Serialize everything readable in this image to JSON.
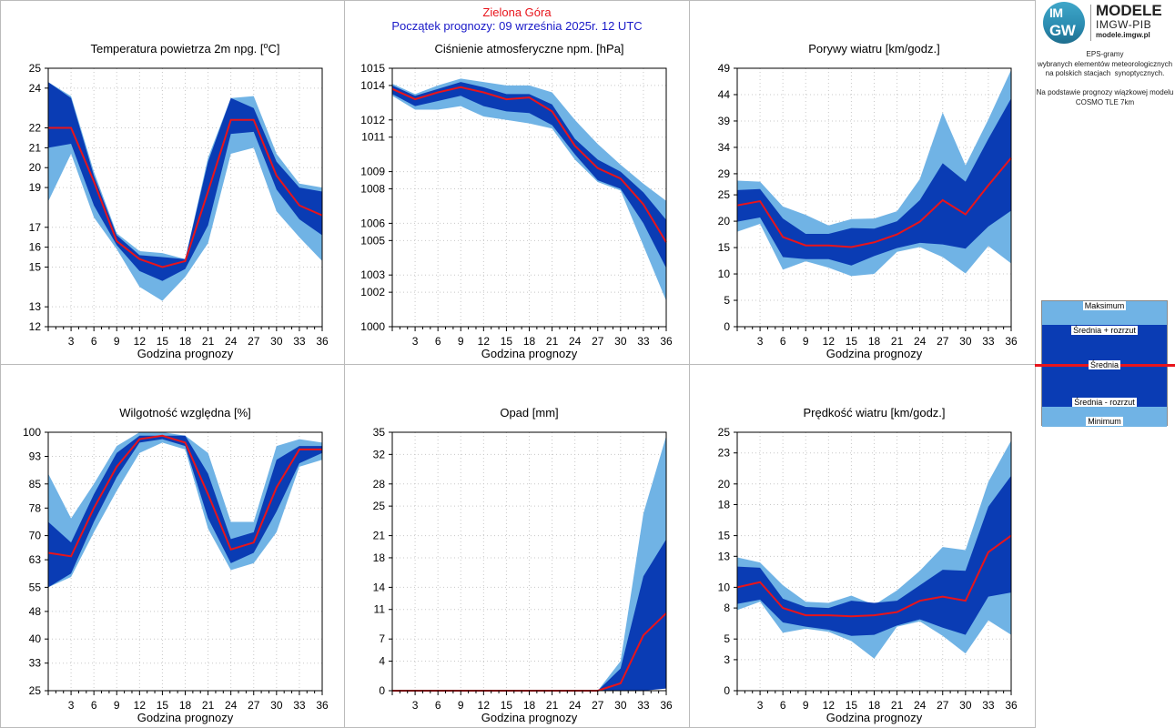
{
  "header": {
    "station": "Zielona Góra",
    "forecast_start": "Początek prognozy: 09 września 2025r. 12 UTC"
  },
  "logo": {
    "mark_top": "IM",
    "mark_bottom": "GW",
    "title": "MODELE",
    "subtitle": "IMGW-PIB",
    "url": "modele.imgw.pl"
  },
  "info": {
    "lines": [
      "EPS-gramy",
      "wybranych elementów meteorologicznych",
      "na polskich stacjach  synoptycznych.",
      "",
      "Na podstawie prognozy wiązkowej modelu",
      "COSMO TLE 7km"
    ]
  },
  "legend": {
    "max": "Maksimum",
    "upper": "Średnia + rozrzut",
    "mean": "Średnia",
    "lower": "Średnia - rozrzut",
    "min": "Minimum"
  },
  "colors": {
    "minmax_band": "#70b3e5",
    "spread_band": "#0a3cb4",
    "mean_line": "#e8141b",
    "station": "#e8141b",
    "forecast_date": "#1a1ac8"
  },
  "chart_data": [
    {
      "id": "temperature",
      "type": "area",
      "title": "Temperatura powietrza 2m npg. [",
      "title_sup": "o",
      "title_end": "C]",
      "xlabel": "Godzina prognozy",
      "x": [
        0,
        3,
        6,
        9,
        12,
        15,
        18,
        21,
        24,
        27,
        30,
        33,
        36
      ],
      "xticks": [
        3,
        6,
        9,
        12,
        15,
        18,
        21,
        24,
        27,
        30,
        33,
        36
      ],
      "xlim": [
        0,
        36
      ],
      "ylim": [
        12,
        25
      ],
      "yticks": [
        12,
        13,
        15,
        16,
        17,
        19,
        20,
        21,
        22,
        24,
        25
      ],
      "max": [
        24.3,
        23.6,
        19.8,
        16.7,
        15.8,
        15.7,
        15.4,
        20.5,
        23.5,
        23.6,
        20.7,
        19.2,
        19.0
      ],
      "upper": [
        24.3,
        23.5,
        19.6,
        16.6,
        15.6,
        15.5,
        15.4,
        20.3,
        23.5,
        23.0,
        20.3,
        19.0,
        18.8
      ],
      "mean": [
        22.0,
        22.0,
        19.3,
        16.3,
        15.4,
        15.0,
        15.3,
        18.8,
        22.4,
        22.4,
        19.6,
        18.1,
        17.6
      ],
      "lower": [
        21.0,
        21.2,
        18.1,
        16.1,
        14.8,
        14.3,
        14.9,
        17.1,
        21.7,
        21.8,
        18.9,
        17.4,
        16.6
      ],
      "min": [
        18.3,
        20.7,
        17.5,
        15.9,
        14.0,
        13.3,
        14.5,
        16.2,
        20.7,
        21.0,
        17.8,
        16.5,
        15.3
      ]
    },
    {
      "id": "pressure",
      "type": "area",
      "title": "Ciśnienie atmosferyczne npm. [hPa]",
      "xlabel": "Godzina prognozy",
      "x": [
        0,
        3,
        6,
        9,
        12,
        15,
        18,
        21,
        24,
        27,
        30,
        33,
        36
      ],
      "xticks": [
        3,
        6,
        9,
        12,
        15,
        18,
        21,
        24,
        27,
        30,
        33,
        36
      ],
      "xlim": [
        0,
        36
      ],
      "ylim": [
        1000,
        1015
      ],
      "yticks": [
        1000,
        1002,
        1003,
        1005,
        1006,
        1008,
        1009,
        1011,
        1012,
        1014,
        1015
      ],
      "max": [
        1014.1,
        1013.5,
        1014.0,
        1014.4,
        1014.2,
        1014.0,
        1014.0,
        1013.6,
        1012.0,
        1010.6,
        1009.4,
        1008.3,
        1007.3
      ],
      "upper": [
        1014.0,
        1013.4,
        1013.8,
        1014.2,
        1013.9,
        1013.5,
        1013.5,
        1012.9,
        1010.9,
        1009.7,
        1009.0,
        1007.8,
        1006.2
      ],
      "mean": [
        1013.8,
        1013.2,
        1013.6,
        1013.9,
        1013.6,
        1013.2,
        1013.3,
        1012.5,
        1010.5,
        1009.2,
        1008.6,
        1007.1,
        1004.9
      ],
      "lower": [
        1013.5,
        1012.8,
        1013.1,
        1013.4,
        1012.8,
        1012.5,
        1012.4,
        1011.7,
        1010.0,
        1008.5,
        1008.0,
        1006.0,
        1003.4
      ],
      "min": [
        1013.4,
        1012.6,
        1012.6,
        1012.8,
        1012.2,
        1012.0,
        1011.8,
        1011.5,
        1009.7,
        1008.4,
        1007.9,
        1004.7,
        1001.5
      ]
    },
    {
      "id": "gusts",
      "type": "area",
      "title": "Porywy wiatru [km/godz.]",
      "xlabel": "Godzina prognozy",
      "x": [
        0,
        3,
        6,
        9,
        12,
        15,
        18,
        21,
        24,
        27,
        30,
        33,
        36
      ],
      "xticks": [
        3,
        6,
        9,
        12,
        15,
        18,
        21,
        24,
        27,
        30,
        33,
        36
      ],
      "xlim": [
        0,
        36
      ],
      "ylim": [
        0,
        49
      ],
      "yticks": [
        0,
        5,
        10,
        15,
        20,
        25,
        29,
        34,
        39,
        44,
        49
      ],
      "max": [
        27.7,
        27.5,
        22.8,
        21.2,
        19.2,
        20.4,
        20.5,
        21.9,
        28.0,
        40.6,
        30.6,
        39.3,
        48.7
      ],
      "upper": [
        25.9,
        26.1,
        20.5,
        17.6,
        17.6,
        18.7,
        18.6,
        20.0,
        24.0,
        31.0,
        27.5,
        35.6,
        43.3
      ],
      "mean": [
        23.0,
        23.8,
        17.0,
        15.4,
        15.4,
        15.1,
        16.0,
        17.5,
        19.9,
        24.0,
        21.3,
        26.8,
        32.0
      ],
      "lower": [
        19.9,
        20.7,
        13.2,
        12.8,
        12.8,
        11.6,
        13.4,
        14.9,
        15.9,
        15.6,
        14.8,
        19.0,
        22.0
      ],
      "min": [
        18.0,
        19.5,
        10.8,
        12.4,
        11.2,
        9.6,
        10.0,
        14.2,
        15.1,
        13.2,
        10.1,
        15.3,
        12.0
      ]
    },
    {
      "id": "humidity",
      "type": "area",
      "title": "Wilgotność względna [%]",
      "xlabel": "Godzina prognozy",
      "x": [
        0,
        3,
        6,
        9,
        12,
        15,
        18,
        21,
        24,
        27,
        30,
        33,
        36
      ],
      "xticks": [
        3,
        6,
        9,
        12,
        15,
        18,
        21,
        24,
        27,
        30,
        33,
        36
      ],
      "xlim": [
        0,
        36
      ],
      "ylim": [
        25,
        100
      ],
      "yticks": [
        25,
        33,
        40,
        48,
        55,
        63,
        70,
        78,
        85,
        93,
        100
      ],
      "max": [
        88,
        75,
        85,
        96,
        100,
        100,
        99,
        94,
        74,
        74,
        96,
        98,
        97
      ],
      "upper": [
        74,
        68,
        82,
        94,
        99,
        99,
        99,
        88,
        69,
        71,
        92,
        96,
        96
      ],
      "mean": [
        65,
        64,
        78,
        90,
        98,
        99,
        97,
        82,
        66,
        68,
        84,
        95,
        95
      ],
      "lower": [
        55,
        59,
        74,
        87,
        97,
        98,
        96,
        75,
        62,
        65,
        77,
        91,
        94
      ],
      "min": [
        55,
        58,
        71,
        83,
        94,
        97,
        95,
        72,
        60,
        62,
        71,
        90,
        92
      ]
    },
    {
      "id": "precipitation",
      "type": "area",
      "title": "Opad [mm]",
      "xlabel": "Godzina prognozy",
      "x": [
        0,
        3,
        6,
        9,
        12,
        15,
        18,
        21,
        24,
        27,
        30,
        33,
        36
      ],
      "xticks": [
        3,
        6,
        9,
        12,
        15,
        18,
        21,
        24,
        27,
        30,
        33,
        36
      ],
      "xlim": [
        0,
        36
      ],
      "ylim": [
        0,
        35
      ],
      "yticks": [
        0,
        4,
        7,
        11,
        14,
        18,
        21,
        25,
        28,
        32,
        35
      ],
      "max": [
        0,
        0,
        0,
        0,
        0,
        0,
        0,
        0,
        0,
        0,
        4.0,
        24.0,
        34.5
      ],
      "upper": [
        0,
        0,
        0,
        0,
        0,
        0,
        0,
        0,
        0,
        0,
        3.0,
        15.5,
        20.5
      ],
      "mean": [
        0,
        0,
        0,
        0,
        0,
        0,
        0,
        0,
        0,
        0,
        1.0,
        7.5,
        10.5
      ],
      "lower": [
        0,
        0,
        0,
        0,
        0,
        0,
        0,
        0,
        0,
        0,
        0,
        0,
        0.3
      ],
      "min": [
        0,
        0,
        0,
        0,
        0,
        0,
        0,
        0,
        0,
        0,
        0,
        0,
        1.0
      ]
    },
    {
      "id": "windspeed",
      "type": "area",
      "title": "Prędkość wiatru [km/godz.]",
      "xlabel": "Godzina prognozy",
      "x": [
        0,
        3,
        6,
        9,
        12,
        15,
        18,
        21,
        24,
        27,
        30,
        33,
        36
      ],
      "xticks": [
        3,
        6,
        9,
        12,
        15,
        18,
        21,
        24,
        27,
        30,
        33,
        36
      ],
      "xlim": [
        0,
        36
      ],
      "ylim": [
        0,
        25
      ],
      "yticks": [
        0,
        3,
        5,
        8,
        10,
        13,
        15,
        18,
        20,
        23,
        25
      ],
      "max": [
        12.9,
        12.4,
        10.2,
        8.6,
        8.5,
        9.2,
        8.3,
        9.7,
        11.6,
        13.9,
        13.6,
        20.2,
        24.2
      ],
      "upper": [
        12.0,
        11.9,
        8.9,
        8.1,
        8.0,
        8.7,
        8.5,
        8.7,
        10.2,
        11.7,
        11.6,
        17.8,
        20.8
      ],
      "mean": [
        10.0,
        10.5,
        8.0,
        7.3,
        7.3,
        7.2,
        7.3,
        7.6,
        8.7,
        9.1,
        8.7,
        13.4,
        15.0
      ],
      "lower": [
        8.4,
        8.8,
        6.6,
        6.2,
        5.9,
        5.3,
        5.4,
        6.3,
        6.9,
        6.1,
        5.4,
        9.1,
        9.5
      ],
      "min": [
        7.8,
        8.6,
        5.6,
        6.0,
        5.7,
        4.8,
        3.1,
        6.2,
        6.7,
        5.3,
        3.6,
        6.8,
        5.4
      ]
    }
  ]
}
